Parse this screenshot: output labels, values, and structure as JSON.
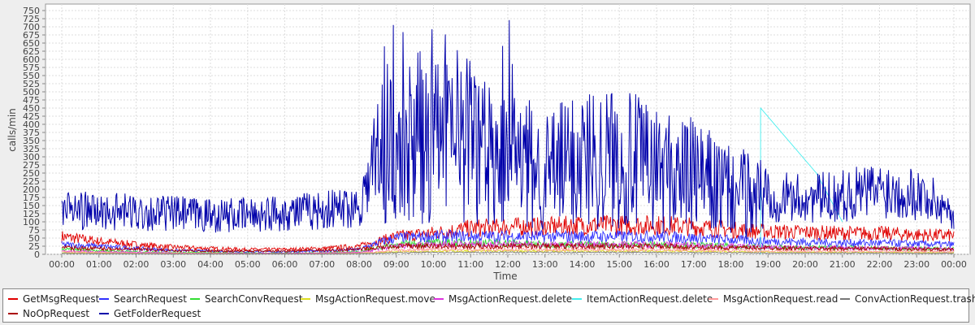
{
  "chart_data": {
    "type": "line",
    "xlabel": "Time",
    "ylabel": "calls/min",
    "ylim": [
      0,
      770
    ],
    "yticks": [
      0,
      25,
      50,
      75,
      100,
      125,
      150,
      175,
      200,
      225,
      250,
      275,
      300,
      325,
      350,
      375,
      400,
      425,
      450,
      475,
      500,
      525,
      550,
      575,
      600,
      625,
      650,
      675,
      700,
      725,
      750
    ],
    "xticks": [
      "00:00",
      "01:00",
      "02:00",
      "03:00",
      "04:00",
      "05:00",
      "06:00",
      "07:00",
      "08:00",
      "09:00",
      "10:00",
      "11:00",
      "12:00",
      "13:00",
      "14:00",
      "15:00",
      "16:00",
      "17:00",
      "18:00",
      "19:00",
      "20:00",
      "21:00",
      "22:00",
      "23:00",
      "00:00"
    ],
    "grid": true,
    "legend_position": "bottom",
    "x_hours": [
      0,
      1,
      2,
      3,
      4,
      5,
      6,
      7,
      8,
      8.5,
      9,
      10,
      11,
      12,
      13,
      14,
      15,
      16,
      17,
      18,
      19,
      20,
      21,
      22,
      23,
      24
    ],
    "series": [
      {
        "name": "GetMsgRequest",
        "color": "#e00000",
        "values": [
          55,
          40,
          30,
          22,
          18,
          15,
          15,
          18,
          25,
          40,
          55,
          65,
          80,
          85,
          85,
          90,
          90,
          90,
          85,
          75,
          70,
          68,
          65,
          65,
          60,
          58
        ]
      },
      {
        "name": "SearchRequest",
        "color": "#3030ff",
        "values": [
          30,
          25,
          18,
          12,
          10,
          8,
          8,
          10,
          15,
          35,
          50,
          55,
          55,
          55,
          55,
          55,
          55,
          55,
          50,
          45,
          40,
          38,
          35,
          35,
          32,
          30
        ]
      },
      {
        "name": "SearchConvRequest",
        "color": "#33dd33",
        "values": [
          15,
          12,
          8,
          6,
          5,
          4,
          4,
          5,
          8,
          20,
          30,
          35,
          35,
          35,
          30,
          30,
          30,
          30,
          28,
          25,
          22,
          20,
          20,
          18,
          18,
          16
        ]
      },
      {
        "name": "MsgActionRequest.move",
        "color": "#dddd22",
        "values": [
          5,
          4,
          3,
          2,
          2,
          2,
          2,
          2,
          3,
          5,
          8,
          10,
          10,
          10,
          10,
          10,
          10,
          10,
          9,
          8,
          7,
          6,
          6,
          6,
          5,
          5
        ]
      },
      {
        "name": "MsgActionRequest.delete",
        "color": "#dd33dd",
        "values": [
          10,
          8,
          6,
          4,
          3,
          3,
          3,
          4,
          6,
          15,
          25,
          30,
          30,
          30,
          30,
          30,
          30,
          30,
          28,
          25,
          22,
          20,
          20,
          18,
          18,
          16
        ]
      },
      {
        "name": "ItemActionRequest.delete",
        "color": "#44eeee",
        "values": [
          null,
          null,
          null,
          null,
          null,
          null,
          null,
          null,
          null,
          null,
          null,
          null,
          null,
          null,
          null,
          null,
          null,
          null,
          null,
          null,
          450,
          250,
          null,
          null,
          null,
          null
        ]
      },
      {
        "name": "MsgActionRequest.read",
        "color": "#ff9999",
        "values": [
          8,
          6,
          4,
          3,
          3,
          2,
          2,
          3,
          4,
          8,
          12,
          15,
          15,
          15,
          15,
          15,
          15,
          15,
          14,
          12,
          10,
          10,
          10,
          9,
          9,
          8
        ]
      },
      {
        "name": "ConvActionRequest.trash",
        "color": "#777777",
        "values": [
          3,
          2,
          2,
          1,
          1,
          1,
          1,
          1,
          2,
          3,
          5,
          6,
          6,
          6,
          6,
          6,
          6,
          6,
          5,
          5,
          4,
          4,
          4,
          4,
          3,
          3
        ]
      },
      {
        "name": "NoOpRequest",
        "color": "#aa0000",
        "values": [
          20,
          18,
          15,
          12,
          10,
          10,
          10,
          12,
          15,
          20,
          25,
          25,
          25,
          25,
          25,
          25,
          25,
          25,
          22,
          20,
          20,
          18,
          18,
          18,
          16,
          15
        ]
      },
      {
        "name": "GetFolderRequest",
        "color": "#0000aa",
        "values": [
          140,
          130,
          130,
          125,
          120,
          120,
          130,
          135,
          150,
          300,
          330,
          340,
          360,
          300,
          250,
          300,
          300,
          260,
          240,
          190,
          180,
          170,
          180,
          200,
          190,
          130
        ]
      }
    ]
  }
}
